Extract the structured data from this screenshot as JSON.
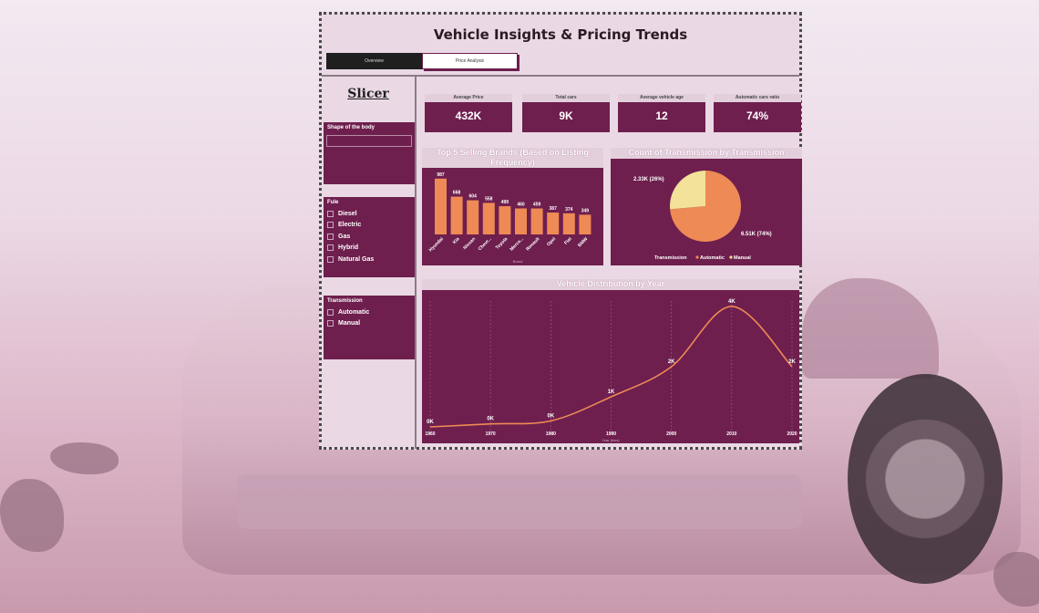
{
  "header": {
    "title": "Vehicle Insights & Pricing Trends",
    "tabs": [
      {
        "label": "Overview",
        "active": true
      },
      {
        "label": "Price Analysis",
        "active": false
      }
    ]
  },
  "slicer": {
    "title": "Slicer",
    "body_shape": {
      "label": "Shape of the body",
      "value": ""
    },
    "fuel": {
      "label": "Fule",
      "options": [
        "Diesel",
        "Electric",
        "Gas",
        "Hybrid",
        "Natural Gas"
      ]
    },
    "transmission": {
      "label": "Transmission",
      "options": [
        "Automatic",
        "Manual"
      ]
    }
  },
  "kpis": [
    {
      "label": "Average Price",
      "value": "432K"
    },
    {
      "label": "Total cars",
      "value": "9K"
    },
    {
      "label": "Average vehicle age",
      "value": "12"
    },
    {
      "label": "Automatic cars ratio",
      "value": "74%"
    }
  ],
  "colors": {
    "panel": "#6e1f4e",
    "bar": "#ee8a55",
    "pie_automatic": "#ee8a55",
    "pie_manual": "#f2e199",
    "line": "#ee8a55"
  },
  "chart_data": [
    {
      "type": "bar",
      "title": "Top 5 Selling Brands (Based on Listing Frequency)",
      "xlabel": "Brand",
      "categories": [
        "Hyundai",
        "Kia",
        "Nissan",
        "Chevr...",
        "Toyota",
        "Merce...",
        "Renault",
        "Opel",
        "Fiat",
        "BMW"
      ],
      "values": [
        987,
        668,
        604,
        558,
        499,
        460,
        459,
        387,
        374,
        349
      ],
      "labels": [
        "987",
        "668",
        "604",
        "558",
        "499",
        "460",
        "459",
        "387",
        "374",
        "349"
      ],
      "ylim": [
        0,
        1000
      ]
    },
    {
      "type": "pie",
      "title": "Count of Transmission by Transmission",
      "legend_title": "Transmission",
      "legend_position": "bottom",
      "slices": [
        {
          "name": "Automatic",
          "value": 6510,
          "label": "6.51K (74%)"
        },
        {
          "name": "Manual",
          "value": 2330,
          "label": "2.33K (26%)"
        }
      ]
    },
    {
      "type": "line",
      "title": "Vehicle Distribution by Year",
      "xlabel": "Year (bins)",
      "x": [
        1960,
        1970,
        1980,
        1990,
        2000,
        2010,
        2020
      ],
      "y": [
        0.0,
        0.1,
        0.2,
        1.0,
        2.0,
        4.0,
        2.0
      ],
      "labels": [
        "0K",
        "0K",
        "0K",
        "1K",
        "2K",
        "4K",
        "2K"
      ],
      "ylim": [
        0,
        4.3
      ]
    }
  ]
}
